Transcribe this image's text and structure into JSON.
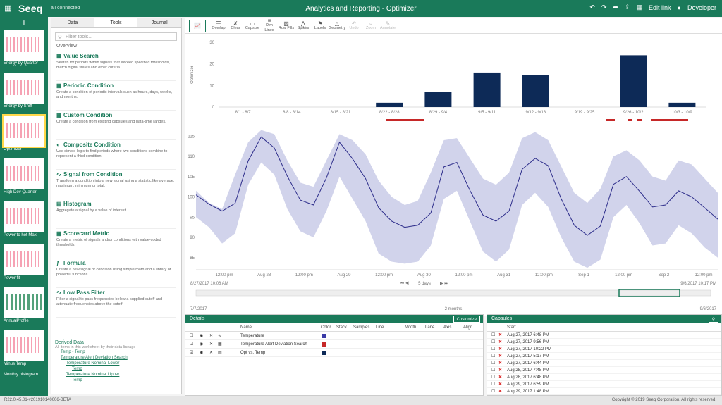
{
  "topbar": {
    "logo": "Seeq",
    "connection": "all connected",
    "title": "Analytics and Reporting - Optimizer",
    "edit_link": "Edit link",
    "user": "Developer"
  },
  "left_strip": {
    "add_label": "+",
    "thumbnails": [
      {
        "label": "Energy by Quarter"
      },
      {
        "label": "Energy by Shift"
      },
      {
        "label": "Optimizer"
      },
      {
        "label": "High Dev Quarter"
      },
      {
        "label": "Power to hot Max"
      },
      {
        "label": "Power fit"
      },
      {
        "label": "AnnualProfile"
      },
      {
        "label": "Minus Temp"
      },
      {
        "label": "Monthly histogram"
      }
    ]
  },
  "tools_panel": {
    "tabs": [
      "Data",
      "Tools",
      "Journal"
    ],
    "search_placeholder": "Filter tools...",
    "overview_label": "Overview",
    "items": [
      {
        "name": "Value Search",
        "desc": "Search for periods within signals that exceed specified thresholds, match digital states and other criteria."
      },
      {
        "name": "Periodic Condition",
        "desc": "Create a condition of periodic intervals such as hours, days, weeks, and months."
      },
      {
        "name": "Custom Condition",
        "desc": "Create a condition from existing capsules and data-time ranges."
      },
      {
        "name": "Composite Condition",
        "desc": "Use simple logic to find periods where two conditions combine to represent a third condition."
      },
      {
        "name": "Signal from Condition",
        "desc": "Transform a condition into a new signal using a statistic like average, maximum, minimum or total."
      },
      {
        "name": "Histogram",
        "desc": "Aggregate a signal by a value of interest."
      },
      {
        "name": "Scorecard Metric",
        "desc": "Create a metric of signals and/or conditions with value-coded thresholds."
      },
      {
        "name": "Formula",
        "desc": "Create a new signal or condition using simple math and a library of powerful functions."
      },
      {
        "name": "Low Pass Filter",
        "desc": "Filter a signal to pass frequencies below a supplied cutoff and attenuate frequencies above the cutoff."
      }
    ],
    "derived": {
      "title": "Derived Data",
      "subtitle": "All items in this worksheet by their data lineage",
      "items": [
        "Temp - Temp",
        "Temperature Alert Deviation Search",
        "Temperature Nominal Lower",
        "Temp",
        "Temperature Nominal Upper",
        "Temp"
      ]
    }
  },
  "toolbar": {
    "buttons": [
      "Overlap",
      "Clear",
      "Capsule",
      "Dim Lines",
      "Row Fills",
      "Spikes",
      "Labels",
      "Geometry",
      "Undo",
      "Zoom",
      "Annotate"
    ]
  },
  "chart_data": [
    {
      "type": "bar",
      "categories": [
        "8/1 - 8/7",
        "8/8 - 8/14",
        "8/15 - 8/21",
        "8/22 - 8/28",
        "8/29 - 9/4",
        "9/5 - 9/11",
        "9/12 - 9/18",
        "9/19 - 9/25",
        "9/26 - 10/2",
        "10/3 - 10/9"
      ],
      "values": [
        0,
        0,
        0,
        2,
        7,
        16,
        15,
        0,
        24,
        2
      ],
      "ylabel": "Optimizer",
      "ylim": [
        0,
        30
      ],
      "yticks": [
        0,
        10,
        20,
        30
      ],
      "color": "#0d2a57"
    },
    {
      "type": "line",
      "x_tick_labels": [
        "12:00 pm",
        "Aug 28",
        "12:00 pm",
        "Aug 29",
        "12:00 pm",
        "Aug 30",
        "12:00 pm",
        "Aug 31",
        "12:00 pm",
        "Sep 1",
        "12:00 pm",
        "Sep 2",
        "12:00 pm"
      ],
      "y_ticks": [
        85,
        90,
        95,
        100,
        105,
        110,
        115
      ],
      "ylim": [
        82,
        118
      ],
      "series": [
        {
          "values": [
            100.5,
            98.2,
            96.5,
            98.4,
            108.9,
            114.8,
            112.1,
            105.1,
            99.2,
            98.0,
            104.7,
            113.5,
            109.4,
            104.5,
            97.3,
            94.0,
            92.5,
            93.0,
            96.0,
            107.4,
            108.5,
            101.6,
            95.5,
            94.0,
            96.5,
            106.8,
            109.5,
            107.7,
            99.5,
            93.0,
            90.5,
            92.8,
            103.1,
            105.0,
            101.4,
            97.5,
            98.0,
            101.5,
            100.0,
            97.3,
            94.5
          ]
        },
        {
          "band_lower": [
            95.0,
            92.5,
            88.5,
            91.0,
            103.0,
            108.5,
            105.5,
            97.0,
            91.5,
            90.0,
            96.5,
            105.0,
            99.5,
            94.0,
            86.0,
            84.0,
            83.5,
            84.0,
            88.0,
            99.5,
            101.5,
            94.0,
            86.5,
            84.0,
            87.0,
            98.0,
            101.0,
            97.5,
            90.0,
            84.0,
            82.5,
            84.5,
            95.0,
            98.0,
            93.5,
            88.0,
            88.5,
            93.0,
            91.0,
            87.5,
            85.0
          ],
          "band_upper": [
            101.5,
            98.5,
            97.0,
            105.5,
            113.5,
            116.5,
            115.5,
            109.0,
            103.5,
            102.5,
            109.0,
            115.5,
            114.0,
            110.5,
            104.0,
            100.0,
            98.0,
            99.0,
            106.0,
            114.0,
            114.5,
            109.5,
            104.5,
            103.0,
            106.0,
            114.5,
            116.0,
            114.0,
            107.5,
            101.0,
            98.5,
            102.0,
            110.0,
            111.5,
            109.0,
            105.0,
            104.0,
            109.0,
            108.0,
            104.5,
            101.0
          ]
        }
      ]
    }
  ],
  "trend_controls": {
    "range_start": "8/27/2017 10:06 AM",
    "range_end": "9/6/2017 10:17 PM",
    "duration": "5 days",
    "timeline_start": "7/7/2017",
    "timeline_mid": "2 months",
    "timeline_end": "9/6/2017"
  },
  "details": {
    "title": "Details",
    "customize": "Customize",
    "columns": [
      "Name",
      "Color",
      "Stack",
      "Samples",
      "Line",
      "Width",
      "Lane",
      "Axis",
      "Align"
    ],
    "rows": [
      {
        "name": "Temperature",
        "color": "#3a3aa6"
      },
      {
        "name": "Temperature Alert Deviation Search",
        "color": "#c62828"
      },
      {
        "name": "Opt vs. Temp",
        "color": "#0d2a57"
      }
    ]
  },
  "capsules": {
    "title": "Capsules",
    "column": "Start",
    "rows": [
      "Aug 27, 2017 6:48 PM",
      "Aug 27, 2017 9:56 PM",
      "Aug 27, 2017 10:22 PM",
      "Aug 27, 2017 5:17 PM",
      "Aug 27, 2017 6:44 PM",
      "Aug 28, 2017 7:48 PM",
      "Aug 28, 2017 6:48 PM",
      "Aug 29, 2017 6:59 PM",
      "Aug 29, 2017 1:48 PM"
    ]
  },
  "status": {
    "left": "R22.0.45.01-v201910140006-BETA",
    "right": "Copyright © 2019 Seeq Corporation. All rights reserved."
  }
}
